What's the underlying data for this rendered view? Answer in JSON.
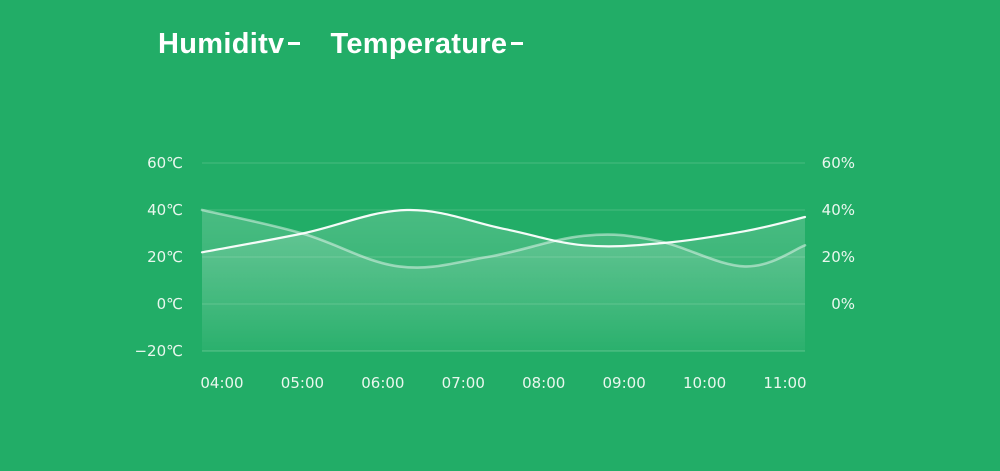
{
  "chart_data": {
    "type": "line",
    "legend": [
      "Humiditv",
      "Temperature"
    ],
    "categories": [
      "04:00",
      "05:00",
      "06:00",
      "07:00",
      "08:00",
      "09:00",
      "10:00",
      "11:00"
    ],
    "y_left": {
      "ticks": [
        "60℃",
        "40℃",
        "20℃",
        "0℃",
        "−20℃"
      ],
      "range": [
        -20,
        60
      ]
    },
    "y_right": {
      "ticks": [
        "60%",
        "40%",
        "20%",
        "0%"
      ],
      "range": [
        -20,
        60
      ]
    },
    "series": [
      {
        "name": "Temperature",
        "x": [
          0,
          1,
          2.3,
          3.5,
          4.5,
          5.5,
          6.5,
          7.5
        ],
        "values": [
          22,
          30,
          40,
          32,
          25,
          26,
          31,
          37
        ]
      },
      {
        "name": "Humiditv",
        "x": [
          0,
          1,
          2.2,
          3.3,
          4.5,
          5.4,
          6.5,
          7.5
        ],
        "values": [
          40,
          30,
          16,
          20,
          29,
          27,
          16,
          25
        ]
      }
    ],
    "grid": true,
    "colors": {
      "background": "#22ad67",
      "line": "#ffffff",
      "grid": "#62c48f"
    }
  }
}
